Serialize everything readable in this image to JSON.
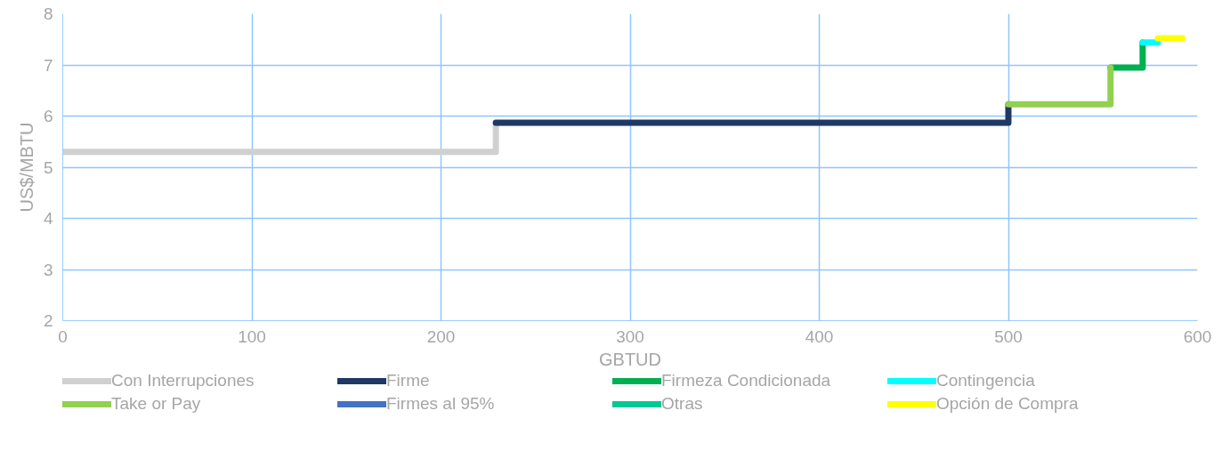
{
  "chart_data": {
    "type": "line",
    "xlabel": "GBTUD",
    "ylabel": "US$/MBTU",
    "xlim": [
      0,
      600
    ],
    "ylim": [
      2,
      8
    ],
    "xticks": [
      0,
      100,
      200,
      300,
      400,
      500,
      600
    ],
    "yticks": [
      2,
      3,
      4,
      5,
      6,
      7,
      8
    ],
    "grid": true,
    "legend": "bottom",
    "line_style": "solid",
    "marker": "none",
    "series": [
      {
        "name": "Con Interrupciones",
        "color": "#d0d0d0",
        "x": [
          0,
          229,
          229
        ],
        "values": [
          5.3,
          5.3,
          5.87
        ]
      },
      {
        "name": "Firme",
        "color": "#203864",
        "x": [
          229,
          500,
          500
        ],
        "values": [
          5.87,
          5.87,
          6.23
        ]
      },
      {
        "name": "Firmeza Condicionada",
        "color": "#00b050",
        "x": [
          554,
          571,
          571
        ],
        "values": [
          6.95,
          6.95,
          7.44
        ]
      },
      {
        "name": "Contingencia",
        "color": "#00ffff",
        "x": [
          571,
          579
        ],
        "values": [
          7.44,
          7.44
        ]
      },
      {
        "name": "Take or Pay",
        "color": "#92d050",
        "x": [
          500,
          554,
          554
        ],
        "values": [
          6.23,
          6.23,
          6.95
        ]
      },
      {
        "name": "Firmes al 95%",
        "color": "#4472c4"
      },
      {
        "name": "Otras",
        "color": "#00c896"
      },
      {
        "name": "Opción de Compra",
        "color": "#ffff00",
        "x": [
          579,
          592
        ],
        "values": [
          7.52,
          7.52
        ]
      }
    ]
  }
}
